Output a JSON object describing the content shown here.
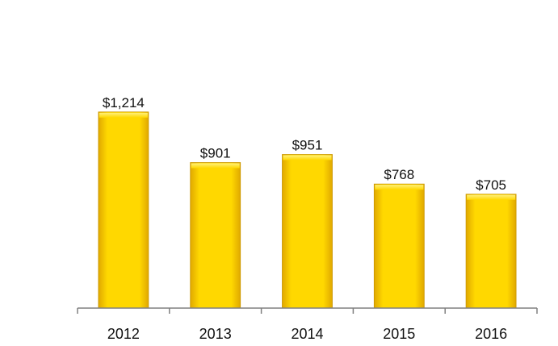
{
  "chart_data": {
    "type": "bar",
    "categories": [
      "2012",
      "2013",
      "2014",
      "2015",
      "2016"
    ],
    "values": [
      1214,
      901,
      951,
      768,
      705
    ],
    "data_labels": [
      "$1,214",
      "$901",
      "$951",
      "$768",
      "$705"
    ],
    "title": "",
    "xlabel": "",
    "ylabel": "",
    "ylim": [
      0,
      1400
    ],
    "grid": false,
    "legend": "none",
    "colors": {
      "bar_top": "#FFF07A",
      "bar_mid": "#FFD800",
      "bar_bottom": "#E0A800",
      "bar_edge": "#C99700",
      "axis": "#808080"
    }
  }
}
